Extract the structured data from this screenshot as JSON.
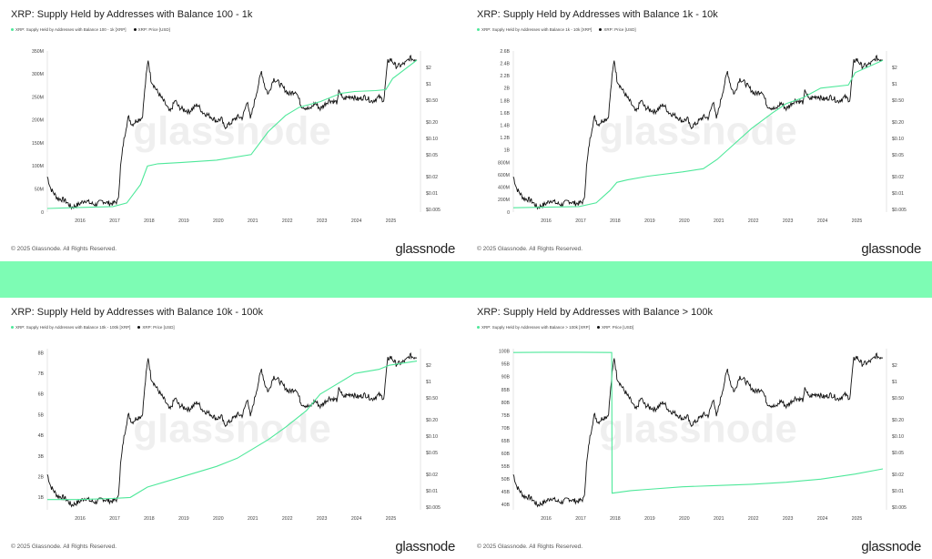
{
  "brand": "glassnode",
  "copyright": "© 2025 Glassnode. All Rights Reserved.",
  "colors": {
    "supply": "#4ee89a",
    "price": "#111111",
    "band": "#7dfcb4"
  },
  "chart_data": [
    {
      "type": "line",
      "title": "XRP: Supply Held by Addresses with Balance 100 - 1k",
      "legend": [
        "XRP: Supply Held by Addresses with Balance 100 - 1k [XRP]",
        "XRP: Price [USD]"
      ],
      "legend_placement": "top-left",
      "x_ticks": [
        "2016",
        "2017",
        "2018",
        "2019",
        "2020",
        "2021",
        "2022",
        "2023",
        "2024",
        "2025"
      ],
      "x_range": [
        2015.1,
        2025.8
      ],
      "y_ticks": [
        "0",
        "50M",
        "100M",
        "150M",
        "200M",
        "250M",
        "300M",
        "350M"
      ],
      "y_tick_values": [
        0,
        50,
        100,
        150,
        200,
        250,
        300,
        350
      ],
      "ylim": [
        0,
        350
      ],
      "price_ticks": [
        "$2",
        "$1",
        "$0.50",
        "$0.20",
        "$0.10",
        "$0.05",
        "$0.02",
        "$0.01",
        "$0.005"
      ],
      "price_tick_values": [
        2,
        1,
        0.5,
        0.2,
        0.1,
        0.05,
        0.02,
        0.01,
        0.005
      ],
      "price_scale": "log",
      "price_range": [
        0.0045,
        4
      ],
      "supply": {
        "name": "XRP: Supply Held by Addresses with Balance 100 - 1k [XRP]",
        "x": [
          2015.1,
          2016,
          2017,
          2017.4,
          2017.8,
          2018.0,
          2018.3,
          2019,
          2020,
          2021.0,
          2021.5,
          2022,
          2022.4,
          2023,
          2023.6,
          2024,
          2024.6,
          2024.9,
          2025.1,
          2025.8
        ],
        "values": [
          8,
          10,
          12,
          20,
          60,
          100,
          105,
          108,
          113,
          125,
          175,
          210,
          228,
          240,
          258,
          262,
          264,
          266,
          290,
          330
        ]
      },
      "price": {
        "name": "XRP: Price [USD]"
      }
    },
    {
      "type": "line",
      "title": "XRP: Supply Held by Addresses with Balance 1k - 10k",
      "legend": [
        "XRP: Supply Held by Addresses with Balance 1k - 10k [XRP]",
        "XRP: Price [USD]"
      ],
      "legend_placement": "top-left",
      "x_ticks": [
        "2016",
        "2017",
        "2018",
        "2019",
        "2020",
        "2021",
        "2022",
        "2023",
        "2024",
        "2025"
      ],
      "x_range": [
        2015.1,
        2025.8
      ],
      "y_ticks": [
        "0",
        "200M",
        "400M",
        "600M",
        "800M",
        "1B",
        "1.2B",
        "1.4B",
        "1.6B",
        "1.8B",
        "2B",
        "2.2B",
        "2.4B",
        "2.6B"
      ],
      "y_tick_values": [
        0,
        0.2,
        0.4,
        0.6,
        0.8,
        1.0,
        1.2,
        1.4,
        1.6,
        1.8,
        2.0,
        2.2,
        2.4,
        2.6
      ],
      "ylim": [
        0,
        2.6
      ],
      "price_ticks": [
        "$2",
        "$1",
        "$0.50",
        "$0.20",
        "$0.10",
        "$0.05",
        "$0.02",
        "$0.01",
        "$0.005"
      ],
      "price_tick_values": [
        2,
        1,
        0.5,
        0.2,
        0.1,
        0.05,
        0.02,
        0.01,
        0.005
      ],
      "price_scale": "log",
      "price_range": [
        0.0045,
        4
      ],
      "supply": {
        "name": "XRP: Supply Held by Addresses with Balance 1k - 10k [XRP]",
        "x": [
          2015.1,
          2016,
          2017,
          2017.5,
          2017.9,
          2018.1,
          2018.4,
          2019,
          2020,
          2020.6,
          2021,
          2021.5,
          2022,
          2022.6,
          2023,
          2023.5,
          2024,
          2024.8,
          2025.0,
          2025.8
        ],
        "values": [
          0.07,
          0.08,
          0.09,
          0.15,
          0.35,
          0.48,
          0.52,
          0.58,
          0.65,
          0.7,
          0.85,
          1.1,
          1.35,
          1.6,
          1.75,
          1.85,
          2.0,
          2.05,
          2.25,
          2.45
        ]
      },
      "price": {
        "name": "XRP: Price [USD]"
      }
    },
    {
      "type": "line",
      "title": "XRP: Supply Held by Addresses with Balance 10k - 100k",
      "legend": [
        "XRP: Supply Held by Addresses with Balance 10k - 100k [XRP]",
        "XRP: Price [USD]"
      ],
      "legend_placement": "top-left",
      "x_ticks": [
        "2016",
        "2017",
        "2018",
        "2019",
        "2020",
        "2021",
        "2022",
        "2023",
        "2024",
        "2025"
      ],
      "x_range": [
        2015.1,
        2025.8
      ],
      "y_ticks": [
        "1B",
        "2B",
        "3B",
        "4B",
        "5B",
        "6B",
        "7B",
        "8B"
      ],
      "y_tick_values": [
        1,
        2,
        3,
        4,
        5,
        6,
        7,
        8
      ],
      "ylim": [
        0.4,
        8.2
      ],
      "price_ticks": [
        "$2",
        "$1",
        "$0.50",
        "$0.20",
        "$0.10",
        "$0.05",
        "$0.02",
        "$0.01",
        "$0.005"
      ],
      "price_tick_values": [
        2,
        1,
        0.5,
        0.2,
        0.1,
        0.05,
        0.02,
        0.01,
        0.005
      ],
      "price_scale": "log",
      "price_range": [
        0.0045,
        4
      ],
      "supply": {
        "name": "XRP: Supply Held by Addresses with Balance 10k - 100k [XRP]",
        "x": [
          2015.1,
          2016,
          2017,
          2017.5,
          2018,
          2019,
          2020,
          2020.6,
          2021,
          2021.5,
          2022,
          2022.6,
          2023,
          2023.6,
          2024,
          2024.7,
          2025,
          2025.8
        ],
        "values": [
          0.9,
          0.9,
          0.95,
          1.0,
          1.5,
          2.0,
          2.5,
          2.9,
          3.3,
          3.8,
          4.4,
          5.2,
          6.0,
          6.6,
          7.0,
          7.2,
          7.4,
          7.6
        ]
      },
      "price": {
        "name": "XRP: Price [USD]"
      }
    },
    {
      "type": "line",
      "title": "XRP: Supply Held by Addresses with Balance > 100k",
      "legend": [
        "XRP: Supply Held by Addresses with Balance > 100k [XRP]",
        "XRP: Price [USD]"
      ],
      "legend_placement": "top-left",
      "x_ticks": [
        "2016",
        "2017",
        "2018",
        "2019",
        "2020",
        "2021",
        "2022",
        "2023",
        "2024",
        "2025"
      ],
      "x_range": [
        2015.1,
        2025.8
      ],
      "y_ticks": [
        "40B",
        "45B",
        "50B",
        "55B",
        "60B",
        "65B",
        "70B",
        "75B",
        "80B",
        "85B",
        "90B",
        "95B",
        "100B"
      ],
      "y_tick_values": [
        40,
        45,
        50,
        55,
        60,
        65,
        70,
        75,
        80,
        85,
        90,
        95,
        100
      ],
      "ylim": [
        38,
        101
      ],
      "price_ticks": [
        "$2",
        "$1",
        "$0.50",
        "$0.20",
        "$0.10",
        "$0.05",
        "$0.02",
        "$0.01",
        "$0.005"
      ],
      "price_tick_values": [
        2,
        1,
        0.5,
        0.2,
        0.1,
        0.05,
        0.02,
        0.01,
        0.005
      ],
      "price_scale": "log",
      "price_range": [
        0.0045,
        4
      ],
      "supply": {
        "name": "XRP: Supply Held by Addresses with Balance > 100k [XRP]",
        "x": [
          2015.1,
          2016,
          2017,
          2017.95,
          2017.96,
          2018.5,
          2019,
          2020,
          2021,
          2022,
          2023,
          2024,
          2025,
          2025.8
        ],
        "values": [
          99.5,
          99.6,
          99.6,
          99.5,
          44.5,
          45.5,
          46.0,
          47.0,
          47.5,
          48.0,
          48.8,
          50.0,
          52.0,
          54.0
        ]
      },
      "price": {
        "name": "XRP: Price [USD]"
      }
    }
  ]
}
